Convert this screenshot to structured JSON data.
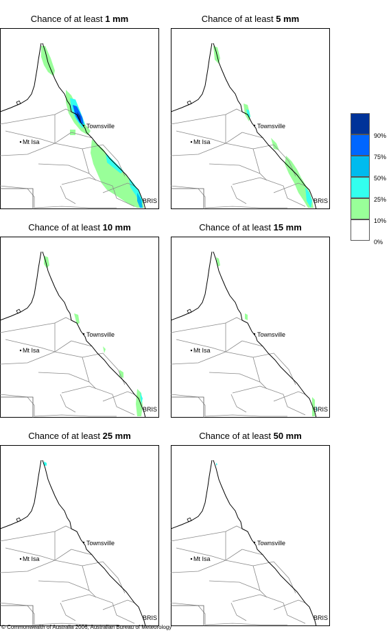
{
  "panels": [
    {
      "title_prefix": "Chance of at least",
      "threshold": "1 mm"
    },
    {
      "title_prefix": "Chance of at least",
      "threshold": "5 mm"
    },
    {
      "title_prefix": "Chance of at least",
      "threshold": "10 mm"
    },
    {
      "title_prefix": "Chance of at least",
      "threshold": "15 mm"
    },
    {
      "title_prefix": "Chance of at least",
      "threshold": "25 mm"
    },
    {
      "title_prefix": "Chance of at least",
      "threshold": "50 mm"
    }
  ],
  "places": {
    "townsville": "Townsville",
    "mt_isa": "Mt Isa",
    "brisbane": "BRIS"
  },
  "legend": [
    {
      "label": "90%",
      "color": "#003399"
    },
    {
      "label": "75%",
      "color": "#0066ff"
    },
    {
      "label": "50%",
      "color": "#00bbee"
    },
    {
      "label": "25%",
      "color": "#33ffee"
    },
    {
      "label": "10%",
      "color": "#99ff99"
    },
    {
      "label": "0%",
      "color": "#ffffff"
    }
  ],
  "footer": "© Commonwealth of Australia 2006, Australian Bureau of Meteorology"
}
